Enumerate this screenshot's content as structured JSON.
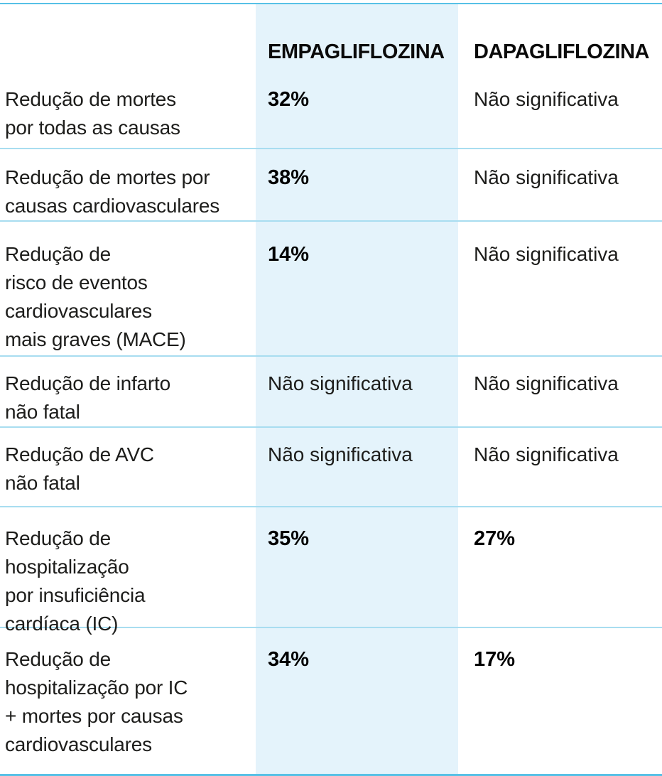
{
  "colors": {
    "outer_rule": "#57c1e6",
    "inner_rule": "#a8ddf0",
    "highlight_column_bg": "#e4f3fb",
    "text": "#1d1d1b"
  },
  "chart_data": {
    "type": "table",
    "columns": [
      "EMPAGLIFLOZINA",
      "DAPAGLIFLOZINA"
    ],
    "highlighted_column": "EMPAGLIFLOZINA",
    "rows": [
      {
        "label": "Redução de mortes\npor todas as causas",
        "empagliflozina": "32%",
        "dapagliflozina": "Não significativa"
      },
      {
        "label": "Redução de mortes por\ncausas cardiovasculares",
        "empagliflozina": "38%",
        "dapagliflozina": "Não significativa"
      },
      {
        "label": "Redução de\nrisco de eventos\ncardiovasculares\nmais graves (MACE)",
        "empagliflozina": "14%",
        "dapagliflozina": "Não significativa"
      },
      {
        "label": "Redução de infarto\nnão fatal",
        "empagliflozina": "Não significativa",
        "dapagliflozina": "Não significativa"
      },
      {
        "label": "Redução de AVC\nnão fatal",
        "empagliflozina": "Não significativa",
        "dapagliflozina": "Não significativa"
      },
      {
        "label": "Redução de\nhospitalização\npor insuficiência\ncardíaca (IC)",
        "empagliflozina": "35%",
        "dapagliflozina": "27%"
      },
      {
        "label": "Redução de\nhospitalização por IC\n+ mortes por causas\ncardiovasculares",
        "empagliflozina": "34%",
        "dapagliflozina": "17%"
      }
    ]
  }
}
